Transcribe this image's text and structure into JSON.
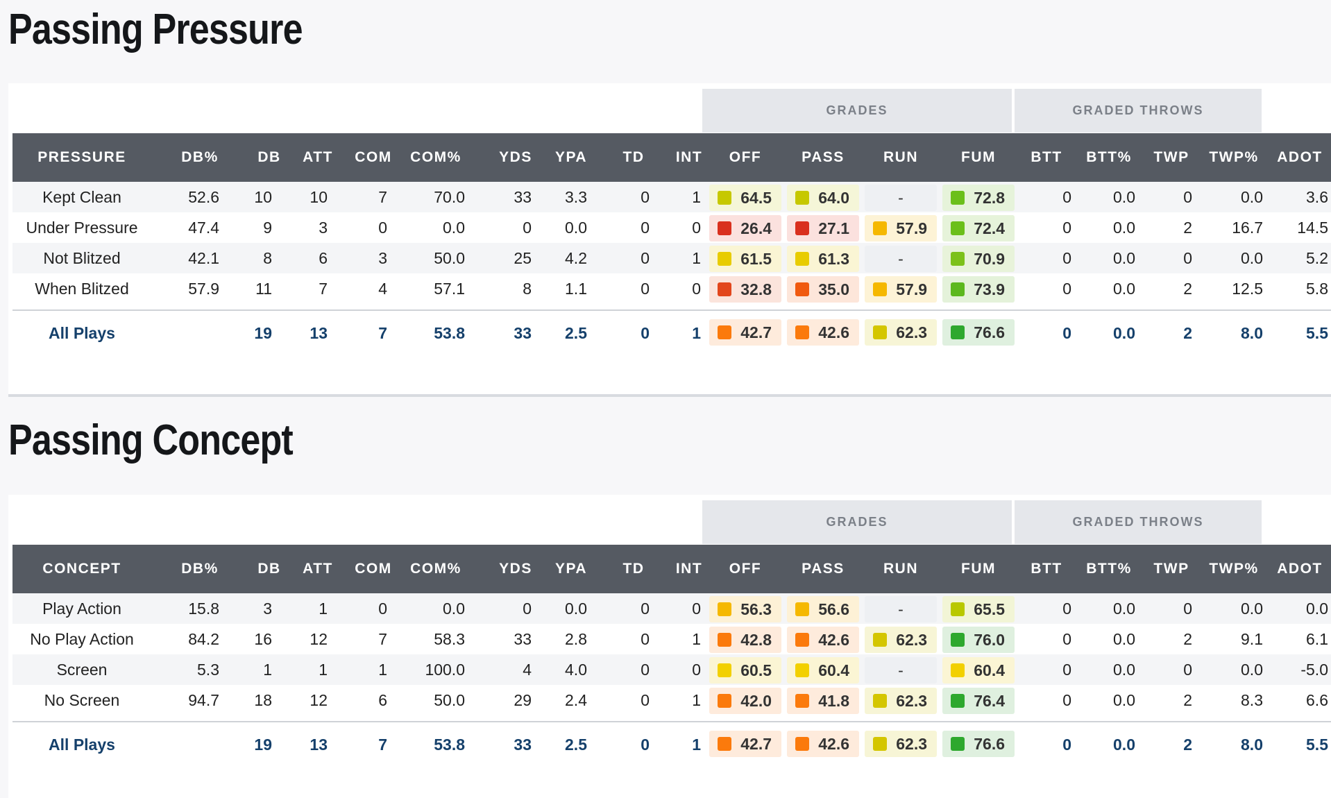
{
  "colors": {
    "header_bg": "#555a62",
    "group_bg": "#e5e7eb",
    "total_text": "#15406b"
  },
  "tables": [
    {
      "title": "Passing Pressure",
      "groups": {
        "grades": "GRADES",
        "graded_throws": "GRADED THROWS"
      },
      "columns": [
        "PRESSURE",
        "DB%",
        "DB",
        "ATT",
        "COM",
        "COM%",
        "YDS",
        "YPA",
        "TD",
        "INT",
        "OFF",
        "PASS",
        "RUN",
        "FUM",
        "BTT",
        "BTT%",
        "TWP",
        "TWP%",
        "ADOT"
      ],
      "rows": [
        {
          "name": "Kept Clean",
          "db_pct": "52.6",
          "db": "10",
          "att": "10",
          "com": "7",
          "com_pct": "70.0",
          "yds": "33",
          "ypa": "3.3",
          "td": "0",
          "int": "1",
          "off": {
            "v": "64.5",
            "c": "#c6c800",
            "bg": "#f5f6d8"
          },
          "pass": {
            "v": "64.0",
            "c": "#c6c800",
            "bg": "#f5f6d8"
          },
          "run": {
            "v": "-",
            "c": "",
            "bg": ""
          },
          "fum": {
            "v": "72.8",
            "c": "#6bbf1a",
            "bg": "#e6f3da"
          },
          "btt": "0",
          "btt_pct": "0.0",
          "twp": "0",
          "twp_pct": "0.0",
          "adot": "3.6"
        },
        {
          "name": "Under Pressure",
          "db_pct": "47.4",
          "db": "9",
          "att": "3",
          "com": "0",
          "com_pct": "0.0",
          "yds": "0",
          "ypa": "0.0",
          "td": "0",
          "int": "0",
          "off": {
            "v": "26.4",
            "c": "#d9301e",
            "bg": "#fbe1de"
          },
          "pass": {
            "v": "27.1",
            "c": "#d9301e",
            "bg": "#fbe1de"
          },
          "run": {
            "v": "57.9",
            "c": "#f5b800",
            "bg": "#fdf3d6"
          },
          "fum": {
            "v": "72.4",
            "c": "#6bbf1a",
            "bg": "#e6f3da"
          },
          "btt": "0",
          "btt_pct": "0.0",
          "twp": "2",
          "twp_pct": "16.7",
          "adot": "14.5"
        },
        {
          "name": "Not Blitzed",
          "db_pct": "42.1",
          "db": "8",
          "att": "6",
          "com": "3",
          "com_pct": "50.0",
          "yds": "25",
          "ypa": "4.2",
          "td": "0",
          "int": "1",
          "off": {
            "v": "61.5",
            "c": "#e8cc00",
            "bg": "#faf5d4"
          },
          "pass": {
            "v": "61.3",
            "c": "#e8cc00",
            "bg": "#faf5d4"
          },
          "run": {
            "v": "-",
            "c": "",
            "bg": ""
          },
          "fum": {
            "v": "70.9",
            "c": "#7cc11a",
            "bg": "#e8f3da"
          },
          "btt": "0",
          "btt_pct": "0.0",
          "twp": "0",
          "twp_pct": "0.0",
          "adot": "5.2"
        },
        {
          "name": "When Blitzed",
          "db_pct": "57.9",
          "db": "11",
          "att": "7",
          "com": "4",
          "com_pct": "57.1",
          "yds": "8",
          "ypa": "1.1",
          "td": "0",
          "int": "0",
          "off": {
            "v": "32.8",
            "c": "#e2461c",
            "bg": "#fbe4dc"
          },
          "pass": {
            "v": "35.0",
            "c": "#f05a10",
            "bg": "#fde6da"
          },
          "run": {
            "v": "57.9",
            "c": "#f5b800",
            "bg": "#fdf3d6"
          },
          "fum": {
            "v": "73.9",
            "c": "#5cb81e",
            "bg": "#e4f2da"
          },
          "btt": "0",
          "btt_pct": "0.0",
          "twp": "2",
          "twp_pct": "12.5",
          "adot": "5.8"
        }
      ],
      "total": {
        "name": "All Plays",
        "db_pct": "",
        "db": "19",
        "att": "13",
        "com": "7",
        "com_pct": "53.8",
        "yds": "33",
        "ypa": "2.5",
        "td": "0",
        "int": "1",
        "off": {
          "v": "42.7",
          "c": "#fb7a0c",
          "bg": "#feebdc"
        },
        "pass": {
          "v": "42.6",
          "c": "#fb7a0c",
          "bg": "#feebdc"
        },
        "run": {
          "v": "62.3",
          "c": "#d4c600",
          "bg": "#f7f5d6"
        },
        "fum": {
          "v": "76.6",
          "c": "#2ea82e",
          "bg": "#dff0df"
        },
        "btt": "0",
        "btt_pct": "0.0",
        "twp": "2",
        "twp_pct": "8.0",
        "adot": "5.5"
      }
    },
    {
      "title": "Passing Concept",
      "groups": {
        "grades": "GRADES",
        "graded_throws": "GRADED THROWS"
      },
      "columns": [
        "CONCEPT",
        "DB%",
        "DB",
        "ATT",
        "COM",
        "COM%",
        "YDS",
        "YPA",
        "TD",
        "INT",
        "OFF",
        "PASS",
        "RUN",
        "FUM",
        "BTT",
        "BTT%",
        "TWP",
        "TWP%",
        "ADOT"
      ],
      "rows": [
        {
          "name": "Play Action",
          "db_pct": "15.8",
          "db": "3",
          "att": "1",
          "com": "0",
          "com_pct": "0.0",
          "yds": "0",
          "ypa": "0.0",
          "td": "0",
          "int": "0",
          "off": {
            "v": "56.3",
            "c": "#f5b800",
            "bg": "#fdf1d6"
          },
          "pass": {
            "v": "56.6",
            "c": "#f5b800",
            "bg": "#fdf1d6"
          },
          "run": {
            "v": "-",
            "c": "",
            "bg": ""
          },
          "fum": {
            "v": "65.5",
            "c": "#b9c800",
            "bg": "#f2f5d6"
          },
          "btt": "0",
          "btt_pct": "0.0",
          "twp": "0",
          "twp_pct": "0.0",
          "adot": "0.0"
        },
        {
          "name": "No Play Action",
          "db_pct": "84.2",
          "db": "16",
          "att": "12",
          "com": "7",
          "com_pct": "58.3",
          "yds": "33",
          "ypa": "2.8",
          "td": "0",
          "int": "1",
          "off": {
            "v": "42.8",
            "c": "#fb7a0c",
            "bg": "#feebdc"
          },
          "pass": {
            "v": "42.6",
            "c": "#fb7a0c",
            "bg": "#feebdc"
          },
          "run": {
            "v": "62.3",
            "c": "#d4c600",
            "bg": "#f7f5d6"
          },
          "fum": {
            "v": "76.0",
            "c": "#2ea82e",
            "bg": "#dff0df"
          },
          "btt": "0",
          "btt_pct": "0.0",
          "twp": "2",
          "twp_pct": "9.1",
          "adot": "6.1"
        },
        {
          "name": "Screen",
          "db_pct": "5.3",
          "db": "1",
          "att": "1",
          "com": "1",
          "com_pct": "100.0",
          "yds": "4",
          "ypa": "4.0",
          "td": "0",
          "int": "0",
          "off": {
            "v": "60.5",
            "c": "#f2d000",
            "bg": "#fbf5d4"
          },
          "pass": {
            "v": "60.4",
            "c": "#f2d000",
            "bg": "#fbf5d4"
          },
          "run": {
            "v": "-",
            "c": "",
            "bg": ""
          },
          "fum": {
            "v": "60.4",
            "c": "#f2d000",
            "bg": "#fbf5d4"
          },
          "btt": "0",
          "btt_pct": "0.0",
          "twp": "0",
          "twp_pct": "0.0",
          "adot": "-5.0"
        },
        {
          "name": "No Screen",
          "db_pct": "94.7",
          "db": "18",
          "att": "12",
          "com": "6",
          "com_pct": "50.0",
          "yds": "29",
          "ypa": "2.4",
          "td": "0",
          "int": "1",
          "off": {
            "v": "42.0",
            "c": "#fb7a0c",
            "bg": "#feebdc"
          },
          "pass": {
            "v": "41.8",
            "c": "#fb7a0c",
            "bg": "#feebdc"
          },
          "run": {
            "v": "62.3",
            "c": "#d4c600",
            "bg": "#f7f5d6"
          },
          "fum": {
            "v": "76.4",
            "c": "#2ea82e",
            "bg": "#dff0df"
          },
          "btt": "0",
          "btt_pct": "0.0",
          "twp": "2",
          "twp_pct": "8.3",
          "adot": "6.6"
        }
      ],
      "total": {
        "name": "All Plays",
        "db_pct": "",
        "db": "19",
        "att": "13",
        "com": "7",
        "com_pct": "53.8",
        "yds": "33",
        "ypa": "2.5",
        "td": "0",
        "int": "1",
        "off": {
          "v": "42.7",
          "c": "#fb7a0c",
          "bg": "#feebdc"
        },
        "pass": {
          "v": "42.6",
          "c": "#fb7a0c",
          "bg": "#feebdc"
        },
        "run": {
          "v": "62.3",
          "c": "#d4c600",
          "bg": "#f7f5d6"
        },
        "fum": {
          "v": "76.6",
          "c": "#2ea82e",
          "bg": "#dff0df"
        },
        "btt": "0",
        "btt_pct": "0.0",
        "twp": "2",
        "twp_pct": "8.0",
        "adot": "5.5"
      }
    }
  ]
}
